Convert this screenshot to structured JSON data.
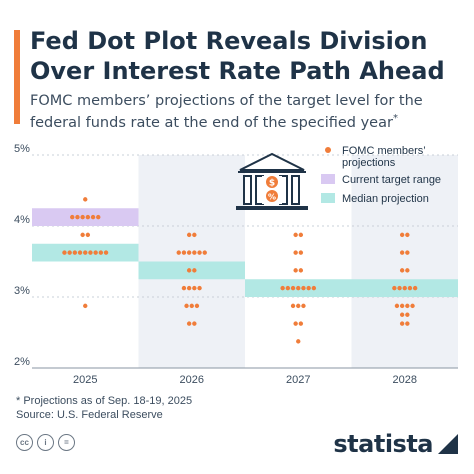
{
  "header": {
    "title": "Fed Dot Plot Reveals Division Over Interest Rate Path Ahead",
    "subtitle": "FOMC members’ projections of the target level for the federal funds rate at the end of the specified year",
    "subtitle_mark": "*"
  },
  "footer": {
    "note": "* Projections as of Sep. 18-19, 2025",
    "source": "Source: U.S. Federal Reserve",
    "license_icons": [
      "cc",
      "i",
      "="
    ],
    "brand": "statista"
  },
  "colors": {
    "dots": "#f07d3a",
    "target_range": "#d9c9f2",
    "median": "#b2e8e4",
    "shade": "#eef1f6",
    "title": "#1f3347"
  },
  "chart_data": {
    "type": "scatter",
    "x": [
      "2025",
      "2026",
      "2027",
      "2028"
    ],
    "ylim": [
      2,
      5
    ],
    "ytick_labels": [
      "2%",
      "3%",
      "4%",
      "5%"
    ],
    "ytick_values": [
      2,
      3,
      4,
      5
    ],
    "grid": true,
    "legend_position": "top-right",
    "legend": [
      {
        "label": "FOMC members’ projections",
        "kind": "dot"
      },
      {
        "label": "Current target range",
        "kind": "target"
      },
      {
        "label": "Median projection",
        "kind": "median"
      }
    ],
    "current_target_range": {
      "x": "2025",
      "low": 4.0,
      "high": 4.25
    },
    "median": [
      {
        "x": "2025",
        "value": 3.625
      },
      {
        "x": "2026",
        "value": 3.375
      },
      {
        "x": "2027",
        "value": 3.125
      },
      {
        "x": "2028",
        "value": 3.125
      }
    ],
    "projections": [
      {
        "x": "2025",
        "levels": [
          {
            "value": 4.375,
            "count": 1
          },
          {
            "value": 4.125,
            "count": 6
          },
          {
            "value": 3.875,
            "count": 2
          },
          {
            "value": 3.625,
            "count": 9
          },
          {
            "value": 2.875,
            "count": 1
          }
        ]
      },
      {
        "x": "2026",
        "levels": [
          {
            "value": 3.875,
            "count": 2
          },
          {
            "value": 3.625,
            "count": 6
          },
          {
            "value": 3.375,
            "count": 2
          },
          {
            "value": 3.125,
            "count": 4
          },
          {
            "value": 2.875,
            "count": 3
          },
          {
            "value": 2.625,
            "count": 2
          }
        ]
      },
      {
        "x": "2027",
        "levels": [
          {
            "value": 3.875,
            "count": 2
          },
          {
            "value": 3.625,
            "count": 2
          },
          {
            "value": 3.375,
            "count": 2
          },
          {
            "value": 3.125,
            "count": 7
          },
          {
            "value": 2.875,
            "count": 3
          },
          {
            "value": 2.625,
            "count": 2
          },
          {
            "value": 2.375,
            "count": 1
          }
        ]
      },
      {
        "x": "2028",
        "levels": [
          {
            "value": 3.875,
            "count": 2
          },
          {
            "value": 3.625,
            "count": 2
          },
          {
            "value": 3.375,
            "count": 2
          },
          {
            "value": 3.125,
            "count": 5
          },
          {
            "value": 2.875,
            "count": 4
          },
          {
            "value": 2.75,
            "count": 2
          },
          {
            "value": 2.625,
            "count": 2
          }
        ]
      }
    ]
  }
}
